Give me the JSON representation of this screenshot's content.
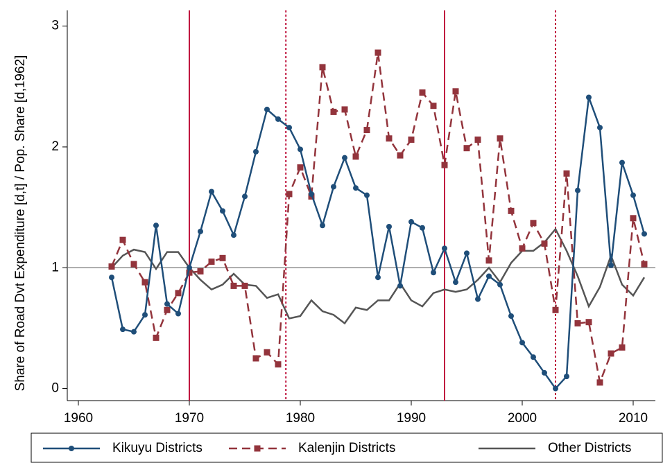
{
  "chart_data": {
    "type": "line",
    "y_label": "Share of Road Dvt Expenditure [d,t] / Pop. Share [d,1962]",
    "x": [
      1963,
      1964,
      1965,
      1966,
      1967,
      1968,
      1969,
      1970,
      1971,
      1972,
      1973,
      1974,
      1975,
      1976,
      1977,
      1978,
      1979,
      1980,
      1981,
      1982,
      1983,
      1984,
      1985,
      1986,
      1987,
      1988,
      1989,
      1990,
      1991,
      1992,
      1993,
      1994,
      1995,
      1996,
      1997,
      1998,
      1999,
      2000,
      2001,
      2002,
      2003,
      2004,
      2005,
      2006,
      2007,
      2008,
      2009,
      2010,
      2011
    ],
    "series": [
      {
        "name": "Kikuyu Districts",
        "color": "#1f4e79",
        "dash": "solid",
        "marker": "circle",
        "values": [
          0.92,
          0.49,
          0.47,
          0.61,
          1.35,
          0.7,
          0.62,
          1.0,
          1.3,
          1.63,
          1.47,
          1.27,
          1.59,
          1.96,
          2.31,
          2.23,
          2.16,
          1.98,
          1.61,
          1.35,
          1.67,
          1.91,
          1.66,
          1.6,
          0.92,
          1.34,
          0.85,
          1.38,
          1.33,
          0.96,
          1.16,
          0.88,
          1.12,
          0.74,
          0.93,
          0.86,
          0.6,
          0.38,
          0.26,
          0.13,
          0.0,
          0.1,
          1.64,
          2.41,
          2.16,
          1.02,
          1.87,
          1.6,
          1.28
        ]
      },
      {
        "name": "Kalenjin Districts",
        "color": "#93343c",
        "dash": "dashed",
        "marker": "square",
        "values": [
          1.01,
          1.23,
          1.03,
          0.88,
          0.42,
          0.65,
          0.79,
          0.96,
          0.97,
          1.05,
          1.08,
          0.85,
          0.85,
          0.25,
          0.3,
          0.2,
          1.61,
          1.83,
          1.59,
          2.66,
          2.29,
          2.31,
          1.92,
          2.14,
          2.78,
          2.07,
          1.93,
          2.06,
          2.45,
          2.34,
          1.85,
          2.46,
          1.99,
          2.06,
          1.06,
          2.07,
          1.47,
          1.16,
          1.37,
          1.2,
          0.65,
          1.78,
          0.54,
          0.55,
          0.05,
          0.29,
          0.34,
          1.41,
          1.03
        ]
      },
      {
        "name": "Other Districts",
        "color": "#555555",
        "dash": "solid",
        "marker": "none",
        "values": [
          1.0,
          1.1,
          1.15,
          1.13,
          0.99,
          1.13,
          1.13,
          1.0,
          0.9,
          0.82,
          0.86,
          0.95,
          0.86,
          0.85,
          0.75,
          0.78,
          0.58,
          0.6,
          0.73,
          0.64,
          0.61,
          0.54,
          0.67,
          0.65,
          0.73,
          0.73,
          0.87,
          0.73,
          0.68,
          0.79,
          0.82,
          0.8,
          0.82,
          0.9,
          1.0,
          0.88,
          1.04,
          1.14,
          1.14,
          1.21,
          1.32,
          1.14,
          0.93,
          0.68,
          0.84,
          1.1,
          0.86,
          0.77,
          0.92
        ]
      }
    ],
    "xlim": [
      1959,
      2012
    ],
    "ylim": [
      -0.1,
      3.13
    ],
    "xticks": [
      1960,
      1970,
      1980,
      1990,
      2000,
      2010
    ],
    "yticks": [
      0,
      1,
      2,
      3
    ],
    "hline": 1,
    "vlines": [
      {
        "x": 1970,
        "style": "solid"
      },
      {
        "x": 1978.7,
        "style": "dotted"
      },
      {
        "x": 1993,
        "style": "solid"
      },
      {
        "x": 2003,
        "style": "dotted"
      }
    ],
    "vline_color": "#c0173f",
    "legend": "bottom"
  }
}
